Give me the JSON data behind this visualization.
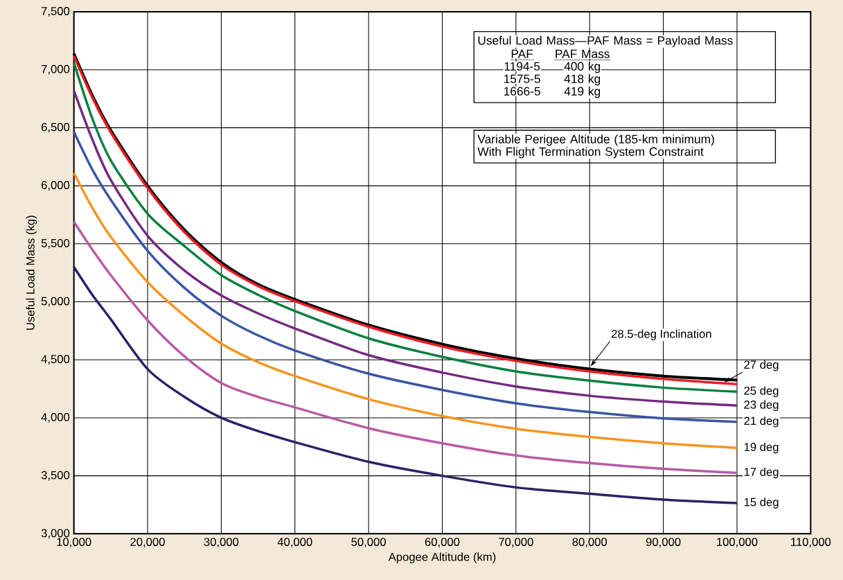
{
  "chart_data": {
    "type": "line",
    "xlabel": "Apogee Altitude (km)",
    "ylabel": "Useful Load Mass (kg)",
    "x": [
      10000,
      12500,
      15000,
      20000,
      25000,
      30000,
      35000,
      40000,
      50000,
      60000,
      70000,
      80000,
      90000,
      100000
    ],
    "series": [
      {
        "name": "28.5-deg Inclination",
        "color": "#000000",
        "values": [
          7140,
          6780,
          6480,
          6000,
          5620,
          5340,
          5150,
          5020,
          4800,
          4635,
          4510,
          4420,
          4360,
          4325
        ]
      },
      {
        "name": "27 deg",
        "color": "#ed1c24",
        "values": [
          7120,
          6760,
          6460,
          5980,
          5600,
          5320,
          5135,
          5005,
          4785,
          4615,
          4490,
          4400,
          4335,
          4290
        ]
      },
      {
        "name": "25 deg",
        "color": "#0a8040",
        "values": [
          7060,
          6580,
          6220,
          5760,
          5480,
          5230,
          5060,
          4920,
          4685,
          4525,
          4400,
          4320,
          4260,
          4225
        ]
      },
      {
        "name": "23 deg",
        "color": "#742a80",
        "values": [
          6820,
          6400,
          6050,
          5570,
          5270,
          5055,
          4900,
          4770,
          4540,
          4390,
          4270,
          4190,
          4140,
          4105
        ]
      },
      {
        "name": "21 deg",
        "color": "#3a55a4",
        "values": [
          6465,
          6140,
          5880,
          5440,
          5120,
          4880,
          4710,
          4580,
          4380,
          4240,
          4125,
          4050,
          3995,
          3965
        ]
      },
      {
        "name": "19 deg",
        "color": "#f7941d",
        "values": [
          6110,
          5810,
          5560,
          5170,
          4880,
          4640,
          4480,
          4360,
          4160,
          4015,
          3905,
          3835,
          3780,
          3740
        ]
      },
      {
        "name": "17 deg",
        "color": "#b95aa5",
        "values": [
          5690,
          5450,
          5230,
          4840,
          4530,
          4300,
          4180,
          4090,
          3910,
          3780,
          3675,
          3610,
          3560,
          3525
        ]
      },
      {
        "name": "15 deg",
        "color": "#262466",
        "values": [
          5300,
          5060,
          4850,
          4420,
          4180,
          4000,
          3885,
          3790,
          3620,
          3500,
          3400,
          3345,
          3295,
          3265
        ]
      }
    ],
    "xlim": [
      10000,
      110000
    ],
    "ylim": [
      3000,
      7500
    ],
    "xticks": [
      {
        "value": 10000,
        "label": "10,000"
      },
      {
        "value": 20000,
        "label": "20,000"
      },
      {
        "value": 30000,
        "label": "30,000"
      },
      {
        "value": 40000,
        "label": "40,000"
      },
      {
        "value": 50000,
        "label": "50,000"
      },
      {
        "value": 60000,
        "label": "60,000"
      },
      {
        "value": 70000,
        "label": "70,000"
      },
      {
        "value": 80000,
        "label": "80,000"
      },
      {
        "value": 90000,
        "label": "90,000"
      },
      {
        "value": 100000,
        "label": "100,000"
      },
      {
        "value": 110000,
        "label": "110,000"
      }
    ],
    "yticks": [
      {
        "value": 3000,
        "label": "3,000"
      },
      {
        "value": 3500,
        "label": "3,500"
      },
      {
        "value": 4000,
        "label": "4,000"
      },
      {
        "value": 4500,
        "label": "4,500"
      },
      {
        "value": 5000,
        "label": "5,000"
      },
      {
        "value": 5500,
        "label": "5,500"
      },
      {
        "value": 6000,
        "label": "6,000"
      },
      {
        "value": 6500,
        "label": "6,500"
      },
      {
        "value": 7000,
        "label": "7,000"
      },
      {
        "value": 7500,
        "label": "7,500"
      }
    ],
    "grid": true,
    "annotations": [
      "Useful Load Mass—PAF Mass = Payload Mass",
      "PAF",
      "PAF Mass",
      "1194-5",
      "400 kg",
      "1575-5",
      "418 kg",
      "1666-5",
      "419 kg",
      "Variable Perigee Altitude (185-km minimum)",
      "With Flight Termination System Constraint"
    ]
  }
}
